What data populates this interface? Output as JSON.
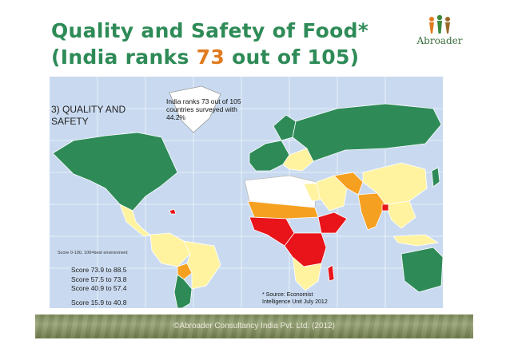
{
  "title": {
    "line1": "Quality and Safety of Food*",
    "line2_prefix": "(India ranks ",
    "line2_rank": "73",
    "line2_suffix": " out of 105)"
  },
  "logo": {
    "text": "Abroader"
  },
  "map": {
    "category_label": "3) QUALITY AND SAFETY",
    "india_note": "India ranks 73 out of 105 countries surveyed with 44.2%",
    "scale_note": "Score 0-100, 100=best environment",
    "legend": [
      {
        "label": "Score 73.9 to 88.5",
        "color": "#2e8b57"
      },
      {
        "label": "Score 57.5 to 73.8",
        "color": "#fff3a0"
      },
      {
        "label": "Score 40.9 to 57.4",
        "color": "#f5a020"
      },
      {
        "label": "Score 15.9 to 40.8",
        "color": "#e8141a"
      }
    ],
    "no_data_color": "#ffffff",
    "ocean_color": "#c9daf0",
    "source": "* Source: Economist Intelligence Unit July 2012"
  },
  "footer": {
    "text": "©Abroader Consultancy India Pvt. Ltd. (2012)"
  }
}
